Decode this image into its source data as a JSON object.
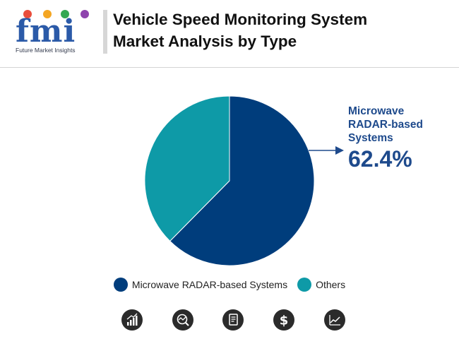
{
  "header": {
    "logo_text": "fmi",
    "logo_tagline": "Future Market Insights",
    "title_line1": "Vehicle Speed Monitoring System",
    "title_line2": "Market Analysis by Type"
  },
  "colors": {
    "primary": "#003d7c",
    "secondary": "#0e9aa7",
    "callout_text": "#1e4a8c",
    "icon_bg": "#2b2b2b"
  },
  "callout": {
    "label_line1": "Microwave",
    "label_line2": "RADAR-based",
    "label_line3": "Systems",
    "value": "62.4%"
  },
  "chart_data": {
    "type": "pie",
    "title": "Vehicle Speed Monitoring System Market Analysis by Type",
    "categories": [
      "Microwave RADAR-based Systems",
      "Others"
    ],
    "values": [
      62.4,
      37.6
    ],
    "colors": [
      "#003d7c",
      "#0e9aa7"
    ],
    "legend_position": "bottom"
  },
  "footer_icons": [
    "bar-chart-icon",
    "magnifier-chart-icon",
    "document-icon",
    "dollar-icon",
    "trend-chart-icon"
  ]
}
